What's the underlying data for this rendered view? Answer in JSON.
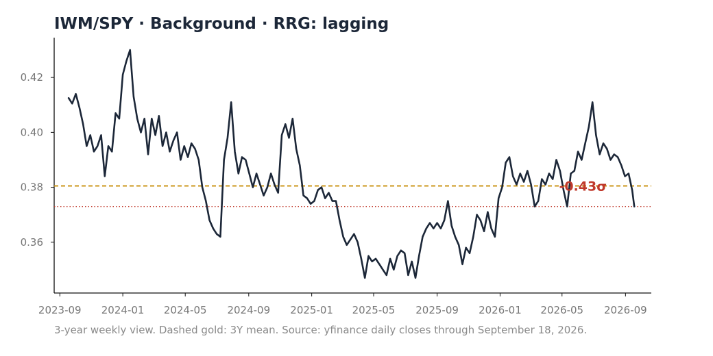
{
  "chart_data": {
    "type": "line",
    "title": "IWM/SPY  ·  Background  ·  RRG: lagging",
    "caption": "3-year weekly view. Dashed gold: 3Y mean. Source: yfinance daily closes through September 18, 2026.",
    "xlabel": "",
    "ylabel": "",
    "x_ticks": [
      "2023-09",
      "2024-01",
      "2024-05",
      "2024-09",
      "2025-01",
      "2025-05",
      "2025-09",
      "2026-01",
      "2026-05",
      "2026-09"
    ],
    "y_ticks": [
      0.36,
      0.38,
      0.4,
      0.42
    ],
    "xlim": [
      "2023-08-21",
      "2026-10-21"
    ],
    "ylim": [
      0.3415,
      0.4345
    ],
    "mean_3y": 0.3805,
    "last_value": 0.373,
    "zscore_label": "-0.43σ",
    "colors": {
      "line": "#1c2738",
      "mean": "#c8900e",
      "last": "#c0392b",
      "zscore": "#c0392b",
      "axis": "#111111",
      "tick_text": "#777777"
    },
    "grid": false,
    "legend": "none",
    "series": [
      {
        "points": [
          [
            "2023-09-18",
            0.4125
          ],
          [
            "2023-09-25",
            0.4105
          ],
          [
            "2023-10-02",
            0.414
          ],
          [
            "2023-10-09",
            0.409
          ],
          [
            "2023-10-16",
            0.403
          ],
          [
            "2023-10-23",
            0.395
          ],
          [
            "2023-10-30",
            0.399
          ],
          [
            "2023-11-06",
            0.393
          ],
          [
            "2023-11-13",
            0.395
          ],
          [
            "2023-11-20",
            0.399
          ],
          [
            "2023-11-27",
            0.384
          ],
          [
            "2023-12-04",
            0.395
          ],
          [
            "2023-12-11",
            0.393
          ],
          [
            "2023-12-18",
            0.407
          ],
          [
            "2023-12-25",
            0.405
          ],
          [
            "2024-01-01",
            0.421
          ],
          [
            "2024-01-08",
            0.426
          ],
          [
            "2024-01-15",
            0.43
          ],
          [
            "2024-01-22",
            0.413
          ],
          [
            "2024-01-29",
            0.405
          ],
          [
            "2024-02-05",
            0.4
          ],
          [
            "2024-02-12",
            0.405
          ],
          [
            "2024-02-19",
            0.392
          ],
          [
            "2024-02-26",
            0.405
          ],
          [
            "2024-03-04",
            0.399
          ],
          [
            "2024-03-11",
            0.406
          ],
          [
            "2024-03-18",
            0.395
          ],
          [
            "2024-03-25",
            0.4
          ],
          [
            "2024-04-01",
            0.393
          ],
          [
            "2024-04-08",
            0.397
          ],
          [
            "2024-04-15",
            0.4
          ],
          [
            "2024-04-22",
            0.39
          ],
          [
            "2024-04-29",
            0.395
          ],
          [
            "2024-05-06",
            0.391
          ],
          [
            "2024-05-13",
            0.396
          ],
          [
            "2024-05-20",
            0.394
          ],
          [
            "2024-05-27",
            0.39
          ],
          [
            "2024-06-03",
            0.38
          ],
          [
            "2024-06-10",
            0.375
          ],
          [
            "2024-06-17",
            0.368
          ],
          [
            "2024-06-24",
            0.365
          ],
          [
            "2024-07-01",
            0.363
          ],
          [
            "2024-07-08",
            0.362
          ],
          [
            "2024-07-15",
            0.39
          ],
          [
            "2024-07-22",
            0.398
          ],
          [
            "2024-07-29",
            0.411
          ],
          [
            "2024-08-05",
            0.393
          ],
          [
            "2024-08-12",
            0.385
          ],
          [
            "2024-08-19",
            0.391
          ],
          [
            "2024-08-26",
            0.39
          ],
          [
            "2024-09-02",
            0.385
          ],
          [
            "2024-09-09",
            0.38
          ],
          [
            "2024-09-16",
            0.385
          ],
          [
            "2024-09-23",
            0.381
          ],
          [
            "2024-09-30",
            0.377
          ],
          [
            "2024-10-07",
            0.38
          ],
          [
            "2024-10-14",
            0.385
          ],
          [
            "2024-10-21",
            0.381
          ],
          [
            "2024-10-28",
            0.378
          ],
          [
            "2024-11-04",
            0.399
          ],
          [
            "2024-11-11",
            0.403
          ],
          [
            "2024-11-18",
            0.398
          ],
          [
            "2024-11-25",
            0.405
          ],
          [
            "2024-12-02",
            0.394
          ],
          [
            "2024-12-09",
            0.388
          ],
          [
            "2024-12-16",
            0.377
          ],
          [
            "2024-12-23",
            0.376
          ],
          [
            "2024-12-30",
            0.374
          ],
          [
            "2025-01-06",
            0.375
          ],
          [
            "2025-01-13",
            0.379
          ],
          [
            "2025-01-20",
            0.38
          ],
          [
            "2025-01-27",
            0.376
          ],
          [
            "2025-02-03",
            0.378
          ],
          [
            "2025-02-10",
            0.375
          ],
          [
            "2025-02-17",
            0.375
          ],
          [
            "2025-02-24",
            0.368
          ],
          [
            "2025-03-03",
            0.362
          ],
          [
            "2025-03-10",
            0.359
          ],
          [
            "2025-03-17",
            0.361
          ],
          [
            "2025-03-24",
            0.363
          ],
          [
            "2025-03-31",
            0.36
          ],
          [
            "2025-04-07",
            0.354
          ],
          [
            "2025-04-14",
            0.347
          ],
          [
            "2025-04-21",
            0.355
          ],
          [
            "2025-04-28",
            0.353
          ],
          [
            "2025-05-05",
            0.354
          ],
          [
            "2025-05-12",
            0.352
          ],
          [
            "2025-05-19",
            0.35
          ],
          [
            "2025-05-26",
            0.348
          ],
          [
            "2025-06-02",
            0.354
          ],
          [
            "2025-06-09",
            0.35
          ],
          [
            "2025-06-16",
            0.355
          ],
          [
            "2025-06-23",
            0.357
          ],
          [
            "2025-06-30",
            0.356
          ],
          [
            "2025-07-07",
            0.348
          ],
          [
            "2025-07-14",
            0.353
          ],
          [
            "2025-07-21",
            0.347
          ],
          [
            "2025-07-28",
            0.355
          ],
          [
            "2025-08-04",
            0.362
          ],
          [
            "2025-08-11",
            0.365
          ],
          [
            "2025-08-18",
            0.367
          ],
          [
            "2025-08-25",
            0.365
          ],
          [
            "2025-09-01",
            0.367
          ],
          [
            "2025-09-08",
            0.365
          ],
          [
            "2025-09-15",
            0.368
          ],
          [
            "2025-09-22",
            0.375
          ],
          [
            "2025-09-29",
            0.366
          ],
          [
            "2025-10-06",
            0.362
          ],
          [
            "2025-10-13",
            0.359
          ],
          [
            "2025-10-20",
            0.352
          ],
          [
            "2025-10-27",
            0.358
          ],
          [
            "2025-11-03",
            0.356
          ],
          [
            "2025-11-10",
            0.362
          ],
          [
            "2025-11-17",
            0.37
          ],
          [
            "2025-11-24",
            0.368
          ],
          [
            "2025-12-01",
            0.364
          ],
          [
            "2025-12-08",
            0.371
          ],
          [
            "2025-12-15",
            0.365
          ],
          [
            "2025-12-22",
            0.362
          ],
          [
            "2025-12-29",
            0.376
          ],
          [
            "2026-01-05",
            0.38
          ],
          [
            "2026-01-12",
            0.389
          ],
          [
            "2026-01-19",
            0.391
          ],
          [
            "2026-01-26",
            0.384
          ],
          [
            "2026-02-02",
            0.381
          ],
          [
            "2026-02-09",
            0.385
          ],
          [
            "2026-02-16",
            0.382
          ],
          [
            "2026-02-23",
            0.386
          ],
          [
            "2026-03-02",
            0.381
          ],
          [
            "2026-03-09",
            0.373
          ],
          [
            "2026-03-16",
            0.375
          ],
          [
            "2026-03-23",
            0.383
          ],
          [
            "2026-03-30",
            0.381
          ],
          [
            "2026-04-06",
            0.385
          ],
          [
            "2026-04-13",
            0.383
          ],
          [
            "2026-04-20",
            0.39
          ],
          [
            "2026-04-27",
            0.386
          ],
          [
            "2026-05-04",
            0.379
          ],
          [
            "2026-05-11",
            0.373
          ],
          [
            "2026-05-18",
            0.385
          ],
          [
            "2026-05-25",
            0.386
          ],
          [
            "2026-06-01",
            0.393
          ],
          [
            "2026-06-08",
            0.39
          ],
          [
            "2026-06-15",
            0.396
          ],
          [
            "2026-06-22",
            0.402
          ],
          [
            "2026-06-29",
            0.411
          ],
          [
            "2026-07-06",
            0.399
          ],
          [
            "2026-07-13",
            0.392
          ],
          [
            "2026-07-20",
            0.396
          ],
          [
            "2026-07-27",
            0.394
          ],
          [
            "2026-08-03",
            0.39
          ],
          [
            "2026-08-10",
            0.392
          ],
          [
            "2026-08-17",
            0.391
          ],
          [
            "2026-08-24",
            0.388
          ],
          [
            "2026-08-31",
            0.384
          ],
          [
            "2026-09-07",
            0.385
          ],
          [
            "2026-09-14",
            0.379
          ],
          [
            "2026-09-18",
            0.373
          ]
        ]
      }
    ]
  }
}
